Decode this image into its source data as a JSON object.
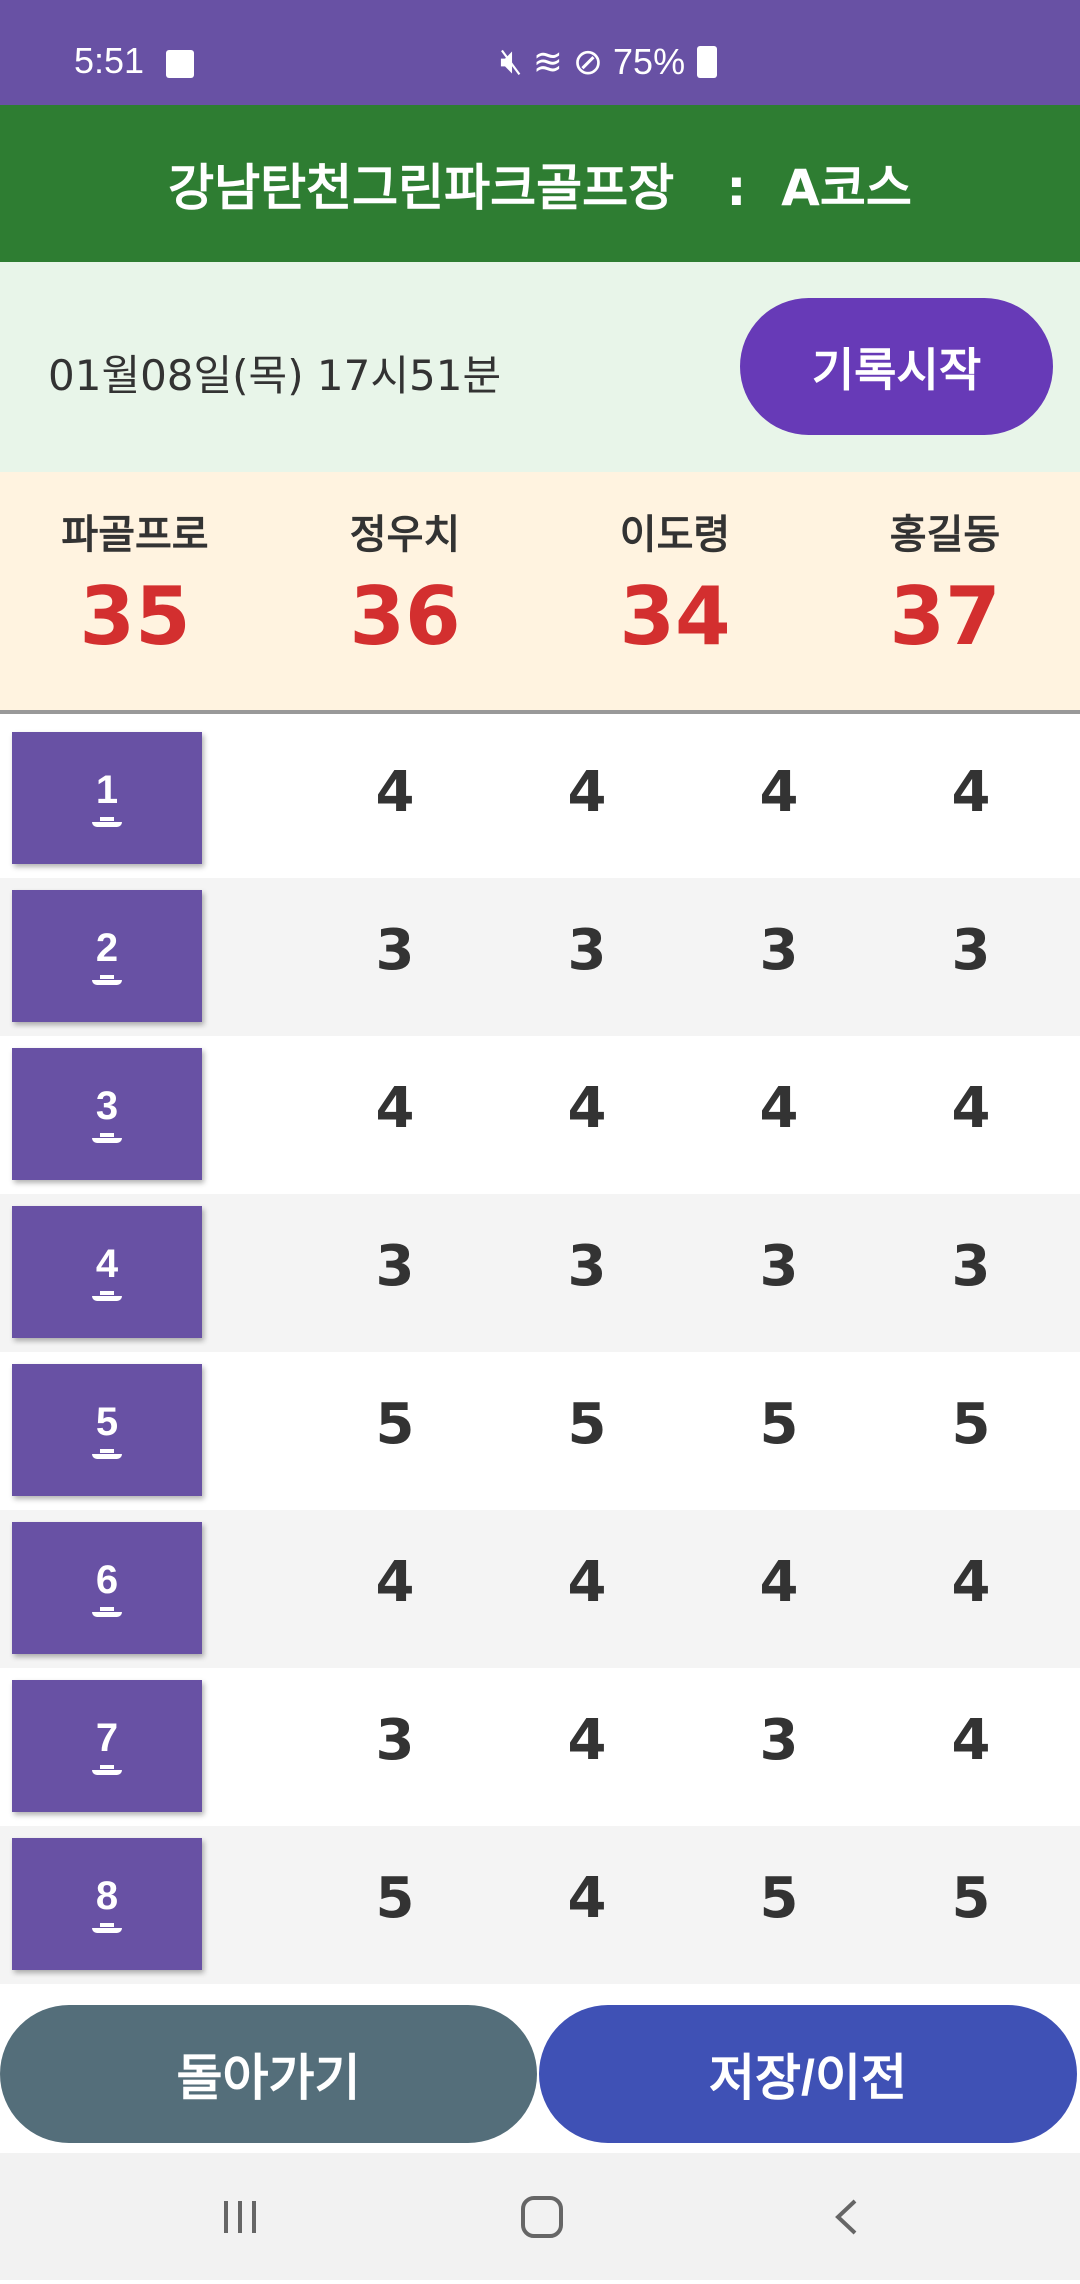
{
  "status_bar": {
    "time": "5:51",
    "battery": "75%",
    "icons": [
      "gallery-icon",
      "mute-icon",
      "wifi-icon",
      "do-not-disturb-icon",
      "battery-charging-icon"
    ]
  },
  "header": {
    "title": "강남탄천그린파크골프장   :  A코스"
  },
  "date_row": {
    "date": "01월08일(목) 17시51분",
    "start_button": "기록시작"
  },
  "players": [
    {
      "name": "파골프로",
      "total": "35"
    },
    {
      "name": "정우치",
      "total": "36"
    },
    {
      "name": "이도령",
      "total": "34"
    },
    {
      "name": "홍길동",
      "total": "37"
    }
  ],
  "holes": [
    {
      "hole": "1",
      "scores": [
        "4",
        "4",
        "4",
        "4"
      ]
    },
    {
      "hole": "2",
      "scores": [
        "3",
        "3",
        "3",
        "3"
      ]
    },
    {
      "hole": "3",
      "scores": [
        "4",
        "4",
        "4",
        "4"
      ]
    },
    {
      "hole": "4",
      "scores": [
        "3",
        "3",
        "3",
        "3"
      ]
    },
    {
      "hole": "5",
      "scores": [
        "5",
        "5",
        "5",
        "5"
      ]
    },
    {
      "hole": "6",
      "scores": [
        "4",
        "4",
        "4",
        "4"
      ]
    },
    {
      "hole": "7",
      "scores": [
        "3",
        "4",
        "3",
        "4"
      ]
    },
    {
      "hole": "8",
      "scores": [
        "5",
        "4",
        "5",
        "5"
      ]
    }
  ],
  "buttons": {
    "back": "돌아가기",
    "save": "저장/이전"
  },
  "colors": {
    "status": "#6851a4",
    "header": "#2e7d32",
    "start": "#673ab7",
    "total": "#d32f2f",
    "back": "#546e7a",
    "save": "#3f51b5"
  }
}
